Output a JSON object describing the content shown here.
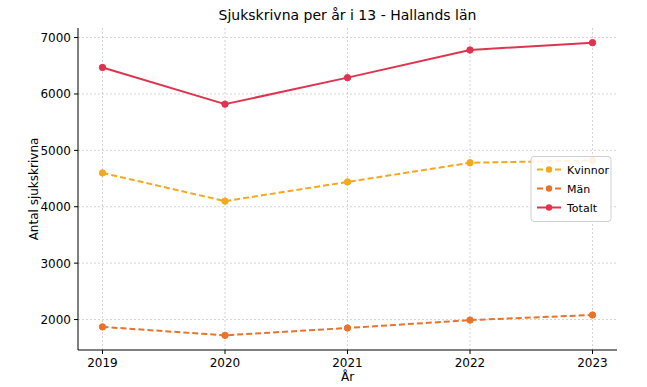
{
  "chart_data": {
    "type": "line",
    "title": "Sjukskrivna per år i 13 - Hallands län",
    "x_label": "År",
    "y_label": "Antal sjukskrivna",
    "x": [
      2019,
      2020,
      2021,
      2022,
      2023
    ],
    "series": [
      {
        "name": "Kvinnor",
        "color": "#f5a81c",
        "line_style": "dashed",
        "marker": "circle",
        "values": [
          4600,
          4100,
          4440,
          4780,
          4820
        ]
      },
      {
        "name": "Män",
        "color": "#e8732b",
        "line_style": "dashed",
        "marker": "circle",
        "values": [
          1870,
          1720,
          1850,
          1990,
          2080
        ]
      },
      {
        "name": "Totalt",
        "color": "#e0334f",
        "line_style": "solid",
        "marker": "circle",
        "values": [
          6470,
          5820,
          6290,
          6780,
          6910
        ]
      }
    ],
    "xlim": [
      2018.8,
      2023.2
    ],
    "xticks": [
      2019,
      2020,
      2021,
      2022,
      2023
    ],
    "ylim": [
      1460,
      7170
    ],
    "yticks": [
      2000,
      3000,
      4000,
      5000,
      6000,
      7000
    ],
    "grid": true,
    "legend": "center right"
  }
}
